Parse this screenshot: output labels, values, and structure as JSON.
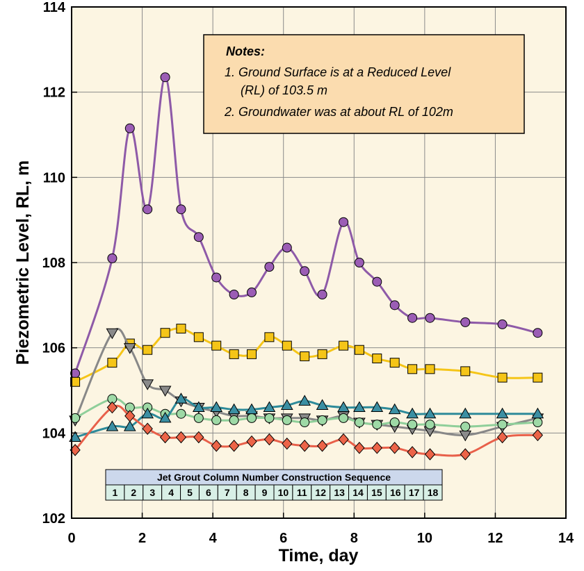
{
  "chart_data": {
    "type": "line",
    "title": "",
    "xlabel": "Time, day",
    "ylabel": "Piezometric Level, RL, m",
    "xlim": [
      0,
      14
    ],
    "ylim": [
      102,
      114
    ],
    "xticks": [
      0,
      2,
      4,
      6,
      8,
      10,
      12,
      14
    ],
    "yticks": [
      102,
      104,
      106,
      108,
      110,
      112,
      114
    ],
    "x_tick_labels": [
      "0",
      "2",
      "4",
      "6",
      "8",
      "10",
      "12",
      "14"
    ],
    "y_tick_labels": [
      "102",
      "104",
      "106",
      "108",
      "110",
      "112",
      "114"
    ],
    "grid": true,
    "series": [
      {
        "marker": "circle",
        "color": "#8e5aa8",
        "fill": "#9b5db5",
        "x": [
          0.1,
          1.15,
          1.65,
          2.15,
          2.65,
          3.1,
          3.6,
          4.1,
          4.6,
          5.1,
          5.6,
          6.1,
          6.6,
          7.1,
          7.7,
          8.15,
          8.65,
          9.15,
          9.65,
          10.15,
          11.15,
          12.2,
          13.2
        ],
        "values": [
          105.4,
          108.1,
          111.15,
          109.25,
          112.35,
          109.25,
          108.6,
          107.65,
          107.25,
          107.3,
          107.9,
          108.35,
          107.8,
          107.25,
          108.95,
          108.0,
          107.55,
          107.0,
          106.7,
          106.7,
          106.6,
          106.55,
          106.35
        ]
      },
      {
        "marker": "square",
        "color": "#f5c518",
        "fill": "#f5c518",
        "x": [
          0.1,
          1.15,
          1.65,
          2.15,
          2.65,
          3.1,
          3.6,
          4.1,
          4.6,
          5.1,
          5.6,
          6.1,
          6.6,
          7.1,
          7.7,
          8.15,
          8.65,
          9.15,
          9.65,
          10.15,
          11.15,
          12.2,
          13.2
        ],
        "values": [
          105.2,
          105.65,
          106.1,
          105.95,
          106.35,
          106.45,
          106.25,
          106.05,
          105.85,
          105.85,
          106.25,
          106.05,
          105.8,
          105.85,
          106.05,
          105.95,
          105.75,
          105.65,
          105.5,
          105.5,
          105.45,
          105.3,
          105.3
        ]
      },
      {
        "marker": "triangle-down",
        "color": "#888888",
        "fill": "#8a8a8a",
        "x": [
          0.1,
          1.15,
          1.65,
          2.15,
          2.65,
          3.1,
          3.6,
          4.1,
          4.6,
          5.1,
          5.6,
          6.1,
          6.6,
          7.1,
          7.7,
          8.15,
          8.65,
          9.15,
          9.65,
          10.15,
          11.15,
          12.2,
          13.2
        ],
        "values": [
          104.3,
          106.35,
          106.0,
          105.15,
          105.0,
          104.75,
          104.6,
          104.5,
          104.4,
          104.4,
          104.35,
          104.35,
          104.35,
          104.3,
          104.4,
          104.25,
          104.2,
          104.15,
          104.1,
          104.05,
          103.95,
          104.15,
          104.35
        ]
      },
      {
        "marker": "circle",
        "color": "#8fcf9a",
        "fill": "#9ed9a6",
        "x": [
          0.1,
          1.15,
          1.65,
          2.15,
          2.65,
          3.1,
          3.6,
          4.1,
          4.6,
          5.1,
          5.6,
          6.1,
          6.6,
          7.1,
          7.7,
          8.15,
          8.65,
          9.15,
          9.65,
          10.15,
          11.15,
          12.2,
          13.2
        ],
        "values": [
          104.35,
          104.8,
          104.6,
          104.6,
          104.45,
          104.45,
          104.35,
          104.3,
          104.3,
          104.35,
          104.35,
          104.3,
          104.25,
          104.3,
          104.35,
          104.25,
          104.2,
          104.25,
          104.2,
          104.2,
          104.15,
          104.2,
          104.25
        ]
      },
      {
        "marker": "triangle-up",
        "color": "#2e8b9a",
        "fill": "#3b8fa3",
        "x": [
          0.1,
          1.15,
          1.65,
          2.15,
          2.65,
          3.1,
          3.6,
          4.1,
          4.6,
          5.1,
          5.6,
          6.1,
          6.6,
          7.1,
          7.7,
          8.15,
          8.65,
          9.15,
          9.65,
          10.15,
          11.15,
          12.2,
          13.2
        ],
        "values": [
          103.9,
          104.15,
          104.15,
          104.45,
          104.35,
          104.8,
          104.6,
          104.6,
          104.55,
          104.55,
          104.6,
          104.65,
          104.75,
          104.65,
          104.6,
          104.6,
          104.6,
          104.55,
          104.45,
          104.45,
          104.45,
          104.45,
          104.45
        ]
      },
      {
        "marker": "diamond",
        "color": "#e8604a",
        "fill": "#ec6448",
        "x": [
          0.1,
          1.15,
          1.65,
          2.15,
          2.65,
          3.1,
          3.6,
          4.1,
          4.6,
          5.1,
          5.6,
          6.1,
          6.6,
          7.1,
          7.7,
          8.15,
          8.65,
          9.15,
          9.65,
          10.15,
          11.15,
          12.2,
          13.2
        ],
        "values": [
          103.6,
          104.6,
          104.4,
          104.1,
          103.9,
          103.9,
          103.9,
          103.7,
          103.7,
          103.8,
          103.85,
          103.75,
          103.7,
          103.7,
          103.85,
          103.65,
          103.65,
          103.65,
          103.55,
          103.5,
          103.5,
          103.9,
          103.95
        ]
      }
    ],
    "notes": {
      "heading": "Notes:",
      "line1": "1. Ground Surface is at a Reduced Level",
      "line2": "(RL) of 103.5 m",
      "line3": "2. Groundwater was at about RL of 102m"
    },
    "sequence_table": {
      "title": "Jet Grout Column Number Construction Sequence",
      "numbers": [
        "1",
        "2",
        "3",
        "4",
        "5",
        "6",
        "7",
        "8",
        "9",
        "10",
        "11",
        "12",
        "13",
        "14",
        "15",
        "16",
        "17",
        "18"
      ]
    }
  },
  "colors": {
    "plot_background": "#fcf5e2",
    "grid": "#8a8a8a",
    "notes_background": "#fbdcaf",
    "table_header": "#ccd8ec",
    "table_cells": "#d8efe6"
  }
}
